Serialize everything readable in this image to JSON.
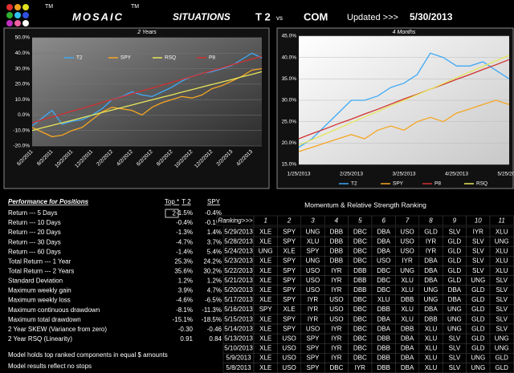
{
  "header": {
    "tm": "TM",
    "logo": "MOSAIC",
    "title": "SITUATIONS",
    "model": "T 2",
    "vs": "vs",
    "benchmark": "COM",
    "updated_label": "Updated >>>",
    "updated": "5/30/2013"
  },
  "chart_data": [
    {
      "type": "line",
      "title": "2 Years",
      "legend": "top",
      "grid": true,
      "categories": [
        "6/2/2011",
        null,
        "8/2/2011",
        null,
        "10/2/2011",
        null,
        "12/2/2011",
        null,
        "2/2/2012",
        null,
        "4/2/2012",
        null,
        "6/2/2012",
        null,
        "8/2/2012",
        null,
        "10/2/2012",
        null,
        "12/2/2012",
        null,
        "2/2/2013",
        null,
        "4/2/2013",
        null
      ],
      "series": [
        {
          "name": "T2",
          "color": "#3fa9f5",
          "values": [
            -7,
            -2,
            3,
            -6,
            -4,
            -3,
            0,
            4,
            10,
            12,
            15,
            13,
            12,
            15,
            18,
            22,
            25,
            27,
            28,
            30,
            32,
            36,
            40,
            37
          ]
        },
        {
          "name": "SPY",
          "color": "#f5a623",
          "values": [
            -8,
            -11,
            -14,
            -13,
            -10,
            -8,
            -3,
            2,
            5,
            4,
            3,
            0,
            5,
            8,
            10,
            12,
            11,
            13,
            17,
            19,
            22,
            25,
            29,
            30
          ]
        },
        {
          "name": "RSQ",
          "color": "#e6e65a",
          "values": [
            -10,
            -8.3,
            -6.7,
            -5,
            -3.4,
            -1.7,
            -0.1,
            1.6,
            3.2,
            4.9,
            6.5,
            8.2,
            9.8,
            11.5,
            13.1,
            14.8,
            16.4,
            18.1,
            19.7,
            21.4,
            23,
            24.7,
            26.3,
            28
          ]
        },
        {
          "name": "P8",
          "color": "#d03030",
          "values": [
            -5,
            -3.1,
            -1.3,
            0.6,
            2.5,
            4.3,
            6.2,
            8.1,
            10,
            11.8,
            13.7,
            15.6,
            17.4,
            19.3,
            21.2,
            23,
            24.9,
            26.8,
            28.7,
            30.5,
            32.4,
            34.3,
            36.1,
            38
          ]
        }
      ],
      "ylim": [
        -20,
        50
      ],
      "yticks": [
        {
          "value": -20,
          "label": "-20.0%"
        },
        {
          "value": -10,
          "label": "-10.0%"
        },
        {
          "value": 0,
          "label": "0.0%"
        },
        {
          "value": 10,
          "label": "10.0%"
        },
        {
          "value": 20,
          "label": "20.0%"
        },
        {
          "value": 30,
          "label": "30.0%"
        },
        {
          "value": 40,
          "label": "40.0%"
        },
        {
          "value": 50,
          "label": "50.0%"
        }
      ]
    },
    {
      "type": "line",
      "title": "4 Months",
      "legend": "bottom",
      "grid": true,
      "categories": [
        "1/25/2013",
        null,
        null,
        null,
        "2/25/2013",
        null,
        null,
        null,
        "3/25/2013",
        null,
        null,
        null,
        "4/25/2013",
        null,
        null,
        null,
        "5/25/2013"
      ],
      "series": [
        {
          "name": "T2",
          "color": "#3fa9f5",
          "values": [
            19,
            21,
            24,
            27,
            30,
            30,
            31,
            33,
            34,
            36,
            41,
            40,
            38,
            38,
            39,
            37,
            35
          ]
        },
        {
          "name": "SPY",
          "color": "#f5a623",
          "values": [
            18,
            19,
            20,
            21,
            22,
            21,
            23,
            24,
            23,
            25,
            26,
            25,
            27,
            28,
            29,
            30,
            29
          ]
        },
        {
          "name": "P8",
          "color": "#d03030",
          "values": [
            21,
            22.2,
            23.3,
            24.5,
            25.6,
            26.8,
            27.9,
            29.1,
            30.3,
            31.4,
            32.6,
            33.7,
            34.9,
            36,
            37.2,
            38.3,
            39.5
          ]
        },
        {
          "name": "RSQ",
          "color": "#e6e65a",
          "values": [
            19.5,
            20.8,
            22.1,
            23.4,
            24.8,
            26.1,
            27.4,
            28.7,
            30,
            31.3,
            32.6,
            33.9,
            35.3,
            36.6,
            37.9,
            39.2,
            40.5
          ]
        }
      ],
      "ylim": [
        15,
        45
      ],
      "yticks": [
        {
          "value": 15,
          "label": "15.0%"
        },
        {
          "value": 20,
          "label": "20.0%"
        },
        {
          "value": 25,
          "label": "25.0%"
        },
        {
          "value": 30,
          "label": "30.0%"
        },
        {
          "value": 35,
          "label": "35.0%"
        },
        {
          "value": 40,
          "label": "40.0%"
        },
        {
          "value": 45,
          "label": "45.0%"
        }
      ]
    }
  ],
  "performance": {
    "title": "Performance for Positions",
    "columns": [
      "Top *",
      "T 2",
      "SPY"
    ],
    "top_count": 2,
    "rows": [
      [
        "Return --- 5 Days",
        "-1.5%",
        "-0.4%"
      ],
      [
        "Return --- 10 Days",
        "-0.4%",
        "-0.1%"
      ],
      [
        "Return --- 20 Days",
        "-1.3%",
        "1.4%"
      ],
      [
        "Return --- 30 Days",
        "-4.7%",
        "3.7%"
      ],
      [
        "Return --- 60 Days",
        "-1.4%",
        "5.4%"
      ],
      [
        "Total Return --- 1 Year",
        "25.3%",
        "24.2%"
      ],
      [
        "Total Return --- 2 Years",
        "35.6%",
        "30.2%"
      ],
      [
        "Standard Deviation",
        "1.2%",
        "1.2%"
      ],
      [
        "Maximum weekly gain",
        "3.9%",
        "4.7%"
      ],
      [
        "Maximum weekly loss",
        "-4.6%",
        "-6.5%"
      ],
      [
        "Maximum continuous drawdown",
        "-8.1%",
        "-11.3%"
      ],
      [
        "Maximum total drawdown",
        "-15.1%",
        "-18.5%"
      ],
      [
        "2 Year SKEW  (Variance from zero)",
        "-0.30",
        "-0.46"
      ],
      [
        "2 Year RSQ  (Linearity)",
        "0.91",
        "0.84"
      ]
    ],
    "notes": [
      "Model holds top ranked  components in equal  $ amounts",
      "Model results reflect no stops"
    ]
  },
  "ranking": {
    "title": "Momentum & Relative Strength Ranking",
    "header": [
      "Ranking>>>",
      1,
      2,
      3,
      4,
      5,
      6,
      7,
      8,
      9,
      10,
      11
    ],
    "rows": [
      [
        "5/29/2013",
        "XLE",
        "SPY",
        "UNG",
        "DBB",
        "DBC",
        "DBA",
        "USO",
        "GLD",
        "SLV",
        "IYR",
        "XLU"
      ],
      [
        "5/28/2013",
        "XLE",
        "SPY",
        "XLU",
        "DBB",
        "DBC",
        "DBA",
        "USO",
        "IYR",
        "GLD",
        "SLV",
        "UNG"
      ],
      [
        "5/24/2013",
        "UNG",
        "XLE",
        "SPY",
        "DBB",
        "DBC",
        "DBA",
        "USO",
        "IYR",
        "GLD",
        "SLV",
        "XLU"
      ],
      [
        "5/23/2013",
        "XLE",
        "SPY",
        "UNG",
        "DBB",
        "DBC",
        "USO",
        "IYR",
        "DBA",
        "GLD",
        "SLV",
        "XLU"
      ],
      [
        "5/22/2013",
        "XLE",
        "SPY",
        "USO",
        "IYR",
        "DBB",
        "DBC",
        "UNG",
        "DBA",
        "GLD",
        "SLV",
        "XLU"
      ],
      [
        "5/21/2013",
        "XLE",
        "SPY",
        "USO",
        "IYR",
        "DBB",
        "DBC",
        "XLU",
        "DBA",
        "GLD",
        "UNG",
        "SLV"
      ],
      [
        "5/20/2013",
        "XLE",
        "SPY",
        "USO",
        "IYR",
        "DBB",
        "DBC",
        "XLU",
        "UNG",
        "DBA",
        "GLD",
        "SLV"
      ],
      [
        "5/17/2013",
        "XLE",
        "SPY",
        "IYR",
        "USO",
        "DBC",
        "XLU",
        "DBB",
        "UNG",
        "DBA",
        "GLD",
        "SLV"
      ],
      [
        "5/16/2013",
        "SPY",
        "XLE",
        "IYR",
        "USO",
        "DBC",
        "DBB",
        "XLU",
        "DBA",
        "UNG",
        "GLD",
        "SLV"
      ],
      [
        "5/15/2013",
        "XLE",
        "SPY",
        "IYR",
        "USO",
        "DBC",
        "DBA",
        "XLU",
        "DBB",
        "UNG",
        "GLD",
        "SLV"
      ],
      [
        "5/14/2013",
        "XLE",
        "SPY",
        "USO",
        "IYR",
        "DBC",
        "DBA",
        "DBB",
        "XLU",
        "UNG",
        "GLD",
        "SLV"
      ],
      [
        "5/13/2013",
        "XLE",
        "USO",
        "SPY",
        "IYR",
        "DBC",
        "DBB",
        "DBA",
        "XLU",
        "SLV",
        "GLD",
        "UNG"
      ],
      [
        "5/10/2013",
        "XLE",
        "USO",
        "SPY",
        "IYR",
        "DBC",
        "DBB",
        "DBA",
        "XLU",
        "SLV",
        "GLD",
        "UNG"
      ],
      [
        "5/9/2013",
        "XLE",
        "USO",
        "SPY",
        "IYR",
        "DBC",
        "DBB",
        "DBA",
        "XLU",
        "SLV",
        "UNG",
        "GLD"
      ],
      [
        "5/8/2013",
        "XLE",
        "USO",
        "SPY",
        "DBC",
        "IYR",
        "DBB",
        "DBA",
        "XLU",
        "SLV",
        "UNG",
        "GLD"
      ]
    ]
  }
}
